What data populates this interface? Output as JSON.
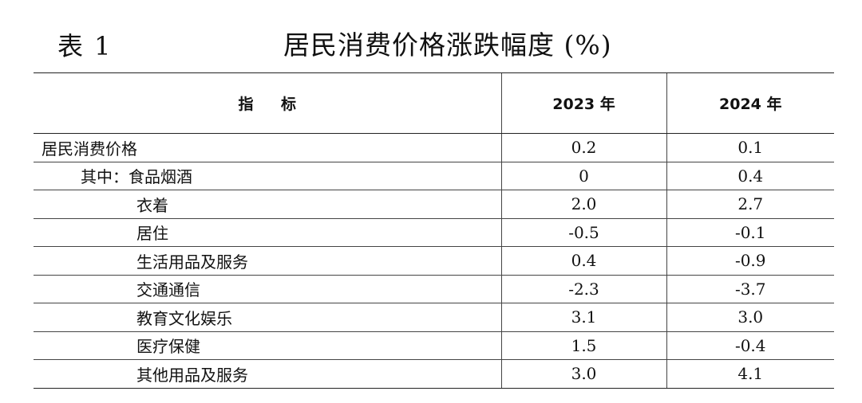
{
  "header": {
    "table_label": "表 1",
    "title": "居民消费价格涨跌幅度 (%)"
  },
  "table": {
    "columns": [
      "指 标",
      "2023 年",
      "2024 年"
    ],
    "rows": [
      {
        "prefix": "",
        "label": "居民消费价格",
        "v2023": "0.2",
        "v2024": "0.1"
      },
      {
        "prefix": "其中：",
        "label": "食品烟酒",
        "v2023": "0",
        "v2024": "0.4"
      },
      {
        "prefix": "",
        "label": "衣着",
        "v2023": "2.0",
        "v2024": "2.7"
      },
      {
        "prefix": "",
        "label": "居住",
        "v2023": "-0.5",
        "v2024": "-0.1"
      },
      {
        "prefix": "",
        "label": "生活用品及服务",
        "v2023": "0.4",
        "v2024": "-0.9"
      },
      {
        "prefix": "",
        "label": "交通通信",
        "v2023": "-2.3",
        "v2024": "-3.7"
      },
      {
        "prefix": "",
        "label": "教育文化娱乐",
        "v2023": "3.1",
        "v2024": "3.0"
      },
      {
        "prefix": "",
        "label": "医疗保健",
        "v2023": "1.5",
        "v2024": "-0.4"
      },
      {
        "prefix": "",
        "label": "其他用品及服务",
        "v2023": "3.0",
        "v2024": "4.1"
      }
    ]
  }
}
